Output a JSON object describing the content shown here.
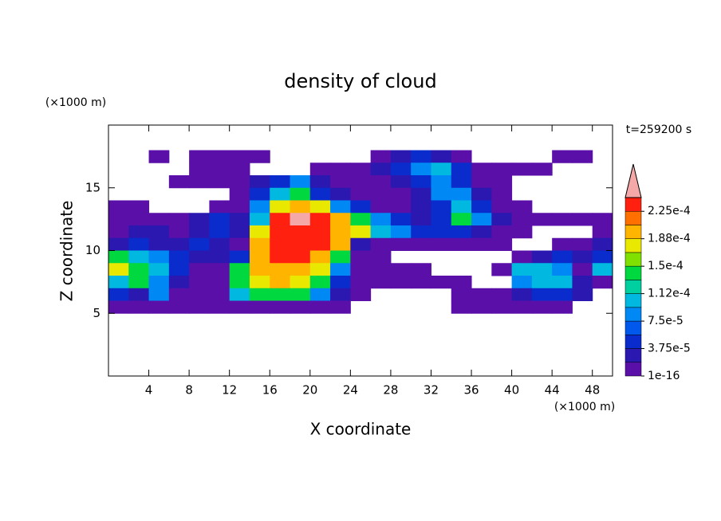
{
  "chart_data": {
    "type": "contour",
    "title": "density of cloud",
    "xlabel": "X coordinate",
    "ylabel": "Z coordinate",
    "xunit": "(×1000 m)",
    "yunit": "(×1000 m)",
    "annotation": "t=259200 s",
    "xlim": [
      0,
      50
    ],
    "ylim": [
      0,
      20
    ],
    "xticks": [
      4,
      8,
      12,
      16,
      20,
      24,
      28,
      32,
      36,
      40,
      44,
      48
    ],
    "yticks": [
      5,
      10,
      15
    ],
    "x": [
      1,
      3,
      5,
      7,
      9,
      11,
      13,
      15,
      17,
      19,
      21,
      23,
      25,
      27,
      29,
      31,
      33,
      35,
      37,
      39,
      41,
      43,
      45,
      47,
      49
    ],
    "y": [
      17.5,
      16.5,
      15.5,
      14.5,
      13.5,
      12.5,
      11.5,
      10.5,
      9.5,
      8.5,
      7.5,
      6.5,
      5.5
    ],
    "z": [
      [
        null,
        null,
        1e-05,
        null,
        1e-05,
        1e-05,
        1e-05,
        1e-05,
        null,
        null,
        null,
        null,
        null,
        1e-05,
        3e-05,
        5e-05,
        3e-05,
        1e-05,
        null,
        null,
        null,
        null,
        1e-05,
        1e-05,
        null
      ],
      [
        null,
        null,
        null,
        null,
        1e-05,
        1e-05,
        1e-05,
        null,
        null,
        null,
        1e-05,
        1e-05,
        1e-05,
        3e-05,
        5e-05,
        8e-05,
        0.00011,
        5e-05,
        1e-05,
        1e-05,
        1e-05,
        1e-05,
        null,
        null,
        null
      ],
      [
        null,
        null,
        null,
        1e-05,
        1e-05,
        1e-05,
        1e-05,
        3e-05,
        5e-05,
        8e-05,
        3e-05,
        1e-05,
        1e-05,
        1e-05,
        3e-05,
        5e-05,
        8e-05,
        5e-05,
        1e-05,
        1e-05,
        null,
        null,
        null,
        null,
        null
      ],
      [
        null,
        null,
        null,
        null,
        null,
        null,
        1e-05,
        5e-05,
        0.00011,
        0.00014,
        5e-05,
        3e-05,
        1e-05,
        1e-05,
        1e-05,
        3e-05,
        8e-05,
        8e-05,
        3e-05,
        1e-05,
        null,
        null,
        null,
        null,
        null
      ],
      [
        1e-05,
        1e-05,
        null,
        null,
        null,
        1e-05,
        1e-05,
        8e-05,
        0.00017,
        0.0002,
        0.00017,
        8e-05,
        5e-05,
        1e-05,
        1e-05,
        3e-05,
        5e-05,
        0.00011,
        5e-05,
        1e-05,
        1e-05,
        null,
        null,
        null,
        null
      ],
      [
        1e-05,
        1e-05,
        1e-05,
        1e-05,
        3e-05,
        5e-05,
        3e-05,
        0.00011,
        0.00023,
        0.00025,
        0.00023,
        0.0002,
        0.00014,
        8e-05,
        5e-05,
        3e-05,
        5e-05,
        0.00014,
        8e-05,
        3e-05,
        1e-05,
        1e-05,
        1e-05,
        1e-05,
        1e-05
      ],
      [
        1e-05,
        3e-05,
        3e-05,
        1e-05,
        3e-05,
        5e-05,
        3e-05,
        0.00017,
        0.00023,
        0.00023,
        0.00023,
        0.0002,
        0.00017,
        0.00011,
        8e-05,
        5e-05,
        5e-05,
        5e-05,
        3e-05,
        1e-05,
        1e-05,
        null,
        null,
        null,
        1e-05
      ],
      [
        3e-05,
        5e-05,
        3e-05,
        3e-05,
        5e-05,
        3e-05,
        1e-05,
        0.0002,
        0.00023,
        0.00023,
        0.00023,
        0.0002,
        3e-05,
        1e-05,
        1e-05,
        1e-05,
        1e-05,
        1e-05,
        1e-05,
        1e-05,
        null,
        null,
        1e-05,
        1e-05,
        3e-05
      ],
      [
        0.00014,
        0.00011,
        8e-05,
        5e-05,
        3e-05,
        3e-05,
        5e-05,
        0.0002,
        0.00023,
        0.00023,
        0.0002,
        0.00014,
        1e-05,
        1e-05,
        null,
        null,
        null,
        null,
        null,
        null,
        1e-05,
        3e-05,
        5e-05,
        3e-05,
        5e-05
      ],
      [
        0.00017,
        0.00014,
        0.00011,
        5e-05,
        1e-05,
        1e-05,
        0.00014,
        0.0002,
        0.0002,
        0.0002,
        0.00017,
        8e-05,
        1e-05,
        1e-05,
        1e-05,
        1e-05,
        null,
        null,
        null,
        1e-05,
        0.00011,
        0.00011,
        8e-05,
        1e-05,
        0.00011
      ],
      [
        0.00011,
        0.00014,
        8e-05,
        3e-05,
        1e-05,
        1e-05,
        0.00014,
        0.00017,
        0.0002,
        0.00017,
        0.00014,
        5e-05,
        1e-05,
        1e-05,
        1e-05,
        1e-05,
        1e-05,
        1e-05,
        null,
        null,
        8e-05,
        0.00011,
        0.00011,
        3e-05,
        1e-05
      ],
      [
        5e-05,
        3e-05,
        8e-05,
        1e-05,
        1e-05,
        1e-05,
        0.00011,
        0.00014,
        0.00014,
        0.00014,
        8e-05,
        3e-05,
        1e-05,
        null,
        null,
        null,
        null,
        1e-05,
        1e-05,
        1e-05,
        3e-05,
        5e-05,
        5e-05,
        3e-05,
        null
      ],
      [
        1e-05,
        1e-05,
        1e-05,
        1e-05,
        1e-05,
        1e-05,
        1e-05,
        1e-05,
        1e-05,
        1e-05,
        1e-05,
        1e-05,
        null,
        null,
        null,
        null,
        null,
        1e-05,
        1e-05,
        1e-05,
        1e-05,
        1e-05,
        1e-05,
        null,
        null
      ]
    ],
    "colorbar": {
      "levels": [
        1e-16,
        1.875e-05,
        3.75e-05,
        5.625e-05,
        7.5e-05,
        9.375e-05,
        0.0001125,
        0.00013125,
        0.00015,
        0.00016875,
        0.0001875,
        0.00020625,
        0.000225,
        0.00024375
      ],
      "colors": [
        "#5a10a8",
        "#2a18b0",
        "#0a2ccc",
        "#0058ec",
        "#0088f4",
        "#00b8e0",
        "#00d0a0",
        "#00d840",
        "#80e000",
        "#e8e800",
        "#ffb400",
        "#ff7000",
        "#ff2010"
      ],
      "extend_color": "#f5a8a8",
      "ticks": [
        {
          "value": 1e-16,
          "label": "1e-16"
        },
        {
          "value": 3.75e-05,
          "label": "3.75e-5"
        },
        {
          "value": 7.5e-05,
          "label": "7.5e-5"
        },
        {
          "value": 0.0001125,
          "label": "1.12e-4"
        },
        {
          "value": 0.00015,
          "label": "1.5e-4"
        },
        {
          "value": 0.0001875,
          "label": "1.88e-4"
        },
        {
          "value": 0.000225,
          "label": "2.25e-4"
        }
      ]
    }
  }
}
